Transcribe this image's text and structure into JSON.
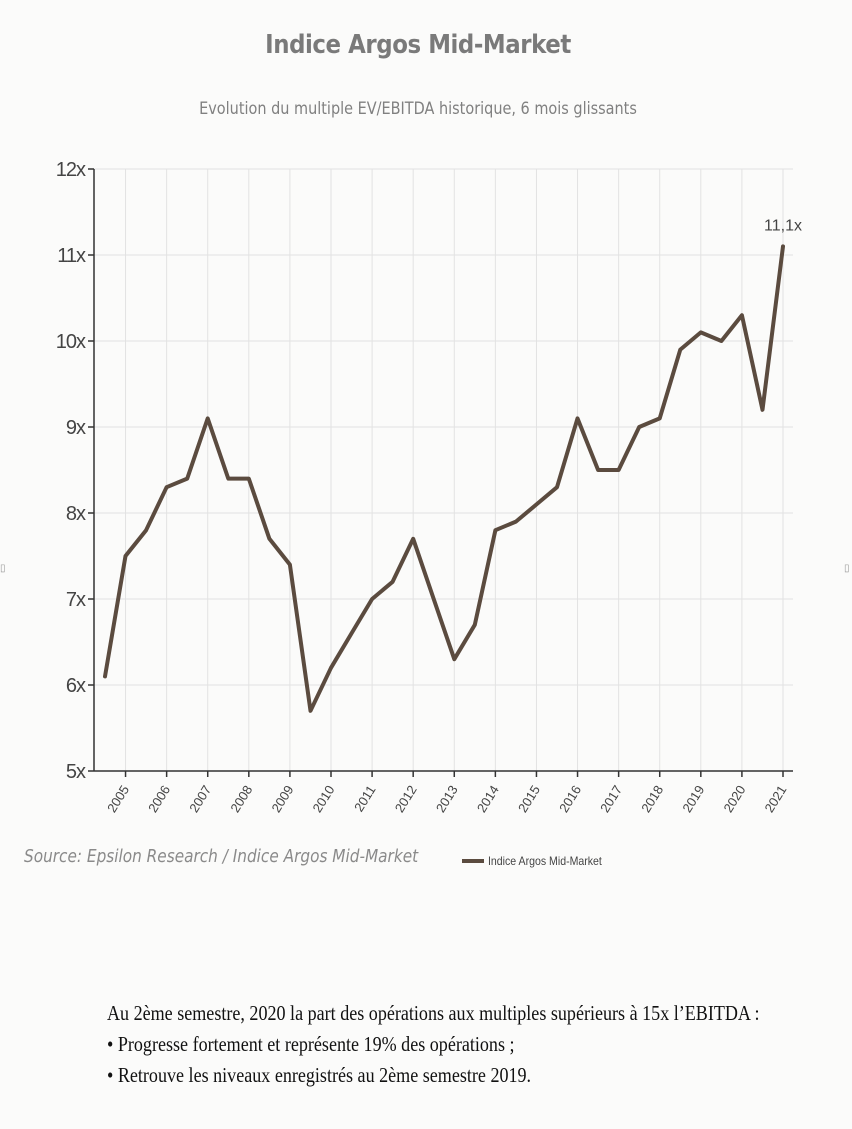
{
  "title": "Indice Argos Mid-Market",
  "subtitle": "Evolution du multiple EV/EBITDA historique, 6 mois glissants",
  "source": "Source: Epsilon Research / Indice Argos Mid-Market",
  "legend_label": "Indice Argos Mid-Market",
  "note": {
    "intro": "Au 2ème semestre, 2020 la part des opérations aux multiples supérieurs à 15x l’EBITDA :",
    "bullets": [
      "• Progresse fortement et représente 19% des opérations ;",
      "• Retrouve les niveaux enregistrés au 2ème semestre 2019."
    ]
  },
  "colors": {
    "line": "#5b4b3f",
    "grid": "#e2e2e2",
    "axis": "#333333"
  },
  "chart_data": {
    "type": "line",
    "title": "Indice Argos Mid-Market",
    "subtitle": "Evolution du multiple EV/EBITDA historique, 6 mois glissants",
    "categories": [
      "2005",
      "2006",
      "2007",
      "2008",
      "2009",
      "2010",
      "2011",
      "2012",
      "2013",
      "2014",
      "2015",
      "2016",
      "2017",
      "2018",
      "2019",
      "2020",
      "2021"
    ],
    "yticks": [
      "5x",
      "6x",
      "7x",
      "8x",
      "9x",
      "10x",
      "11x",
      "12x"
    ],
    "ylim": [
      5,
      12
    ],
    "grid": true,
    "legend_position": "bottom",
    "series": [
      {
        "name": "Indice Argos Mid-Market",
        "x": [
          2004.5,
          2005,
          2005.5,
          2006,
          2006.5,
          2007,
          2007.5,
          2008,
          2008.5,
          2009,
          2009.5,
          2010,
          2010.5,
          2011,
          2011.5,
          2012,
          2012.5,
          2013,
          2013.5,
          2014,
          2014.5,
          2015,
          2015.5,
          2016,
          2016.5,
          2017,
          2017.5,
          2018,
          2018.5,
          2019,
          2019.5,
          2020,
          2020.5,
          2021
        ],
        "values": [
          6.1,
          7.5,
          7.8,
          8.3,
          8.4,
          9.1,
          8.4,
          8.4,
          7.7,
          7.4,
          5.7,
          6.2,
          6.6,
          7.0,
          7.2,
          7.7,
          7.0,
          6.3,
          6.7,
          7.8,
          7.9,
          8.1,
          8.3,
          9.1,
          8.5,
          8.5,
          9.0,
          9.1,
          9.9,
          10.1,
          10.0,
          10.3,
          9.2,
          11.1
        ]
      }
    ],
    "annotations": [
      {
        "x": 2021,
        "y": 11.1,
        "text": "11,1x"
      }
    ]
  }
}
